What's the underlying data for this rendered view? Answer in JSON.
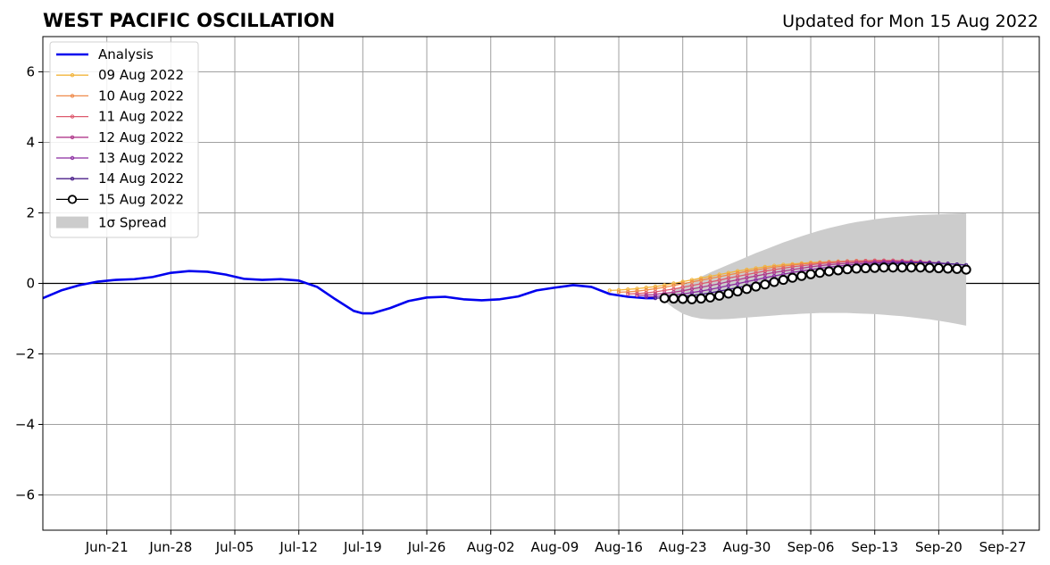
{
  "chart_data": {
    "type": "line",
    "title": "WEST PACIFIC OSCILLATION",
    "subtitle": "Updated for Mon 15 Aug 2022",
    "xlabel": "",
    "ylabel": "",
    "x_axis": {
      "type": "date",
      "range": [
        "2022-06-14",
        "2022-10-01"
      ],
      "tick_dates": [
        "2022-06-21",
        "2022-06-28",
        "2022-07-05",
        "2022-07-12",
        "2022-07-19",
        "2022-07-26",
        "2022-08-02",
        "2022-08-09",
        "2022-08-16",
        "2022-08-23",
        "2022-08-30",
        "2022-09-06",
        "2022-09-13",
        "2022-09-20",
        "2022-09-27"
      ],
      "tick_labels": [
        "Jun-21",
        "Jun-28",
        "Jul-05",
        "Jul-12",
        "Jul-19",
        "Jul-26",
        "Aug-02",
        "Aug-09",
        "Aug-16",
        "Aug-23",
        "Aug-30",
        "Sep-06",
        "Sep-13",
        "Sep-20",
        "Sep-27"
      ]
    },
    "y_axis": {
      "range": [
        -7,
        7
      ],
      "ticks": [
        -6,
        -4,
        -2,
        0,
        2,
        4,
        6
      ],
      "tick_labels": [
        "−6",
        "−4",
        "−2",
        "0",
        "2",
        "4",
        "6"
      ]
    },
    "grid": true,
    "legend_placement": "upper-left",
    "legend_labels": {
      "analysis": "Analysis",
      "spread": "1σ Spread"
    },
    "analysis": {
      "name": "Analysis",
      "color": "#0000ee",
      "points": [
        [
          "2022-06-14",
          -0.42
        ],
        [
          "2022-06-16",
          -0.2
        ],
        [
          "2022-06-18",
          -0.05
        ],
        [
          "2022-06-20",
          0.05
        ],
        [
          "2022-06-22",
          0.1
        ],
        [
          "2022-06-24",
          0.12
        ],
        [
          "2022-06-26",
          0.18
        ],
        [
          "2022-06-28",
          0.3
        ],
        [
          "2022-06-30",
          0.35
        ],
        [
          "2022-07-02",
          0.33
        ],
        [
          "2022-07-04",
          0.25
        ],
        [
          "2022-07-06",
          0.13
        ],
        [
          "2022-07-08",
          0.1
        ],
        [
          "2022-07-10",
          0.12
        ],
        [
          "2022-07-12",
          0.08
        ],
        [
          "2022-07-14",
          -0.1
        ],
        [
          "2022-07-16",
          -0.45
        ],
        [
          "2022-07-18",
          -0.78
        ],
        [
          "2022-07-19",
          -0.85
        ],
        [
          "2022-07-20",
          -0.85
        ],
        [
          "2022-07-22",
          -0.7
        ],
        [
          "2022-07-24",
          -0.5
        ],
        [
          "2022-07-26",
          -0.4
        ],
        [
          "2022-07-28",
          -0.38
        ],
        [
          "2022-07-30",
          -0.45
        ],
        [
          "2022-08-01",
          -0.48
        ],
        [
          "2022-08-03",
          -0.45
        ],
        [
          "2022-08-05",
          -0.37
        ],
        [
          "2022-08-07",
          -0.2
        ],
        [
          "2022-08-09",
          -0.12
        ],
        [
          "2022-08-11",
          -0.05
        ],
        [
          "2022-08-13",
          -0.1
        ],
        [
          "2022-08-15",
          -0.3
        ],
        [
          "2022-08-17",
          -0.38
        ],
        [
          "2022-08-19",
          -0.42
        ],
        [
          "2022-08-20",
          -0.42
        ]
      ]
    },
    "forecasts": [
      {
        "name": "09 Aug 2022",
        "color": "#f2b43c",
        "start": "2022-08-15",
        "values": [
          -0.2,
          -0.19,
          -0.17,
          -0.15,
          -0.12,
          -0.09,
          -0.05,
          0.0,
          0.05,
          0.1,
          0.15,
          0.2,
          0.25,
          0.3,
          0.35,
          0.39,
          0.43,
          0.47,
          0.5,
          0.53,
          0.55,
          0.57,
          0.59,
          0.6,
          0.61,
          0.62,
          0.62,
          0.62,
          0.62,
          0.61,
          0.6,
          0.59,
          0.58,
          0.56,
          0.55
        ]
      },
      {
        "name": "10 Aug 2022",
        "color": "#ef8a4a",
        "start": "2022-08-16",
        "values": [
          -0.25,
          -0.24,
          -0.22,
          -0.19,
          -0.15,
          -0.11,
          -0.06,
          -0.01,
          0.04,
          0.09,
          0.14,
          0.19,
          0.24,
          0.29,
          0.34,
          0.38,
          0.42,
          0.46,
          0.49,
          0.52,
          0.55,
          0.57,
          0.59,
          0.61,
          0.62,
          0.63,
          0.64,
          0.64,
          0.64,
          0.63,
          0.62,
          0.61,
          0.6,
          0.58,
          0.57
        ]
      },
      {
        "name": "11 Aug 2022",
        "color": "#dd5a6e",
        "start": "2022-08-17",
        "values": [
          -0.3,
          -0.29,
          -0.27,
          -0.24,
          -0.2,
          -0.16,
          -0.11,
          -0.06,
          -0.01,
          0.04,
          0.09,
          0.15,
          0.2,
          0.25,
          0.3,
          0.35,
          0.39,
          0.43,
          0.47,
          0.5,
          0.53,
          0.56,
          0.58,
          0.6,
          0.62,
          0.63,
          0.64,
          0.65,
          0.65,
          0.65,
          0.64,
          0.63,
          0.62,
          0.6,
          0.58
        ]
      },
      {
        "name": "12 Aug 2022",
        "color": "#b03a8c",
        "start": "2022-08-18",
        "values": [
          -0.34,
          -0.33,
          -0.31,
          -0.28,
          -0.25,
          -0.21,
          -0.16,
          -0.11,
          -0.06,
          -0.01,
          0.05,
          0.1,
          0.16,
          0.21,
          0.26,
          0.31,
          0.35,
          0.39,
          0.43,
          0.47,
          0.5,
          0.53,
          0.55,
          0.57,
          0.59,
          0.6,
          0.61,
          0.62,
          0.62,
          0.62,
          0.61,
          0.6,
          0.59,
          0.57,
          0.55
        ]
      },
      {
        "name": "13 Aug 2022",
        "color": "#8a2aa0",
        "start": "2022-08-19",
        "values": [
          -0.38,
          -0.37,
          -0.35,
          -0.33,
          -0.3,
          -0.26,
          -0.22,
          -0.17,
          -0.12,
          -0.06,
          -0.01,
          0.05,
          0.1,
          0.16,
          0.21,
          0.26,
          0.31,
          0.35,
          0.39,
          0.43,
          0.46,
          0.49,
          0.52,
          0.54,
          0.56,
          0.58,
          0.59,
          0.6,
          0.6,
          0.6,
          0.6,
          0.59,
          0.58,
          0.56,
          0.54
        ]
      },
      {
        "name": "14 Aug 2022",
        "color": "#4b1f8a",
        "start": "2022-08-20",
        "values": [
          -0.42,
          -0.41,
          -0.39,
          -0.37,
          -0.34,
          -0.31,
          -0.27,
          -0.22,
          -0.17,
          -0.12,
          -0.07,
          -0.01,
          0.05,
          0.1,
          0.16,
          0.21,
          0.26,
          0.31,
          0.35,
          0.39,
          0.43,
          0.46,
          0.49,
          0.51,
          0.53,
          0.55,
          0.56,
          0.57,
          0.58,
          0.58,
          0.58,
          0.57,
          0.56,
          0.54,
          0.52
        ]
      },
      {
        "name": "15 Aug 2022",
        "color": "#000000",
        "start": "2022-08-21",
        "values": [
          -0.42,
          -0.43,
          -0.44,
          -0.45,
          -0.43,
          -0.4,
          -0.35,
          -0.29,
          -0.23,
          -0.16,
          -0.09,
          -0.03,
          0.04,
          0.1,
          0.16,
          0.21,
          0.26,
          0.3,
          0.34,
          0.37,
          0.4,
          0.42,
          0.43,
          0.44,
          0.45,
          0.45,
          0.45,
          0.45,
          0.45,
          0.44,
          0.43,
          0.42,
          0.41,
          0.39
        ]
      }
    ],
    "spread": {
      "name": "1σ Spread",
      "color": "#cccccc",
      "start": "2022-08-21",
      "lower": [
        -0.5,
        -0.7,
        -0.86,
        -0.95,
        -1.0,
        -1.02,
        -1.02,
        -1.01,
        -0.99,
        -0.97,
        -0.95,
        -0.93,
        -0.91,
        -0.89,
        -0.88,
        -0.86,
        -0.85,
        -0.84,
        -0.84,
        -0.84,
        -0.84,
        -0.85,
        -0.86,
        -0.87,
        -0.89,
        -0.91,
        -0.93,
        -0.96,
        -0.99,
        -1.02,
        -1.06,
        -1.1,
        -1.15,
        -1.2
      ],
      "upper": [
        -0.34,
        -0.2,
        -0.06,
        0.07,
        0.19,
        0.31,
        0.42,
        0.53,
        0.64,
        0.75,
        0.86,
        0.96,
        1.06,
        1.16,
        1.25,
        1.34,
        1.42,
        1.5,
        1.57,
        1.63,
        1.69,
        1.74,
        1.78,
        1.82,
        1.85,
        1.88,
        1.9,
        1.92,
        1.94,
        1.95,
        1.96,
        1.97,
        1.98,
        1.99
      ]
    }
  }
}
